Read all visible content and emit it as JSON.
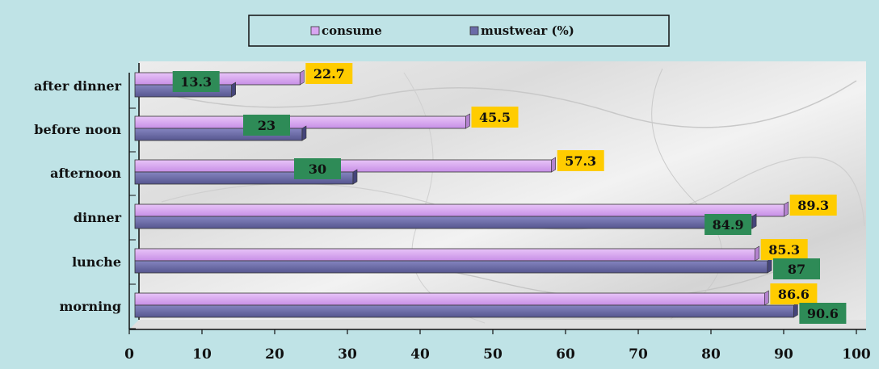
{
  "chart_data": {
    "type": "bar",
    "orientation": "horizontal",
    "title": "",
    "xlabel": "",
    "ylabel": "",
    "categories": [
      "after dinner",
      "before noon",
      "afternoon",
      "dinner",
      "lunche",
      "morning"
    ],
    "series": [
      {
        "name": "consume",
        "values": [
          22.7,
          45.5,
          57.3,
          89.3,
          85.3,
          86.6
        ]
      },
      {
        "name": "mustwear (%)",
        "values": [
          13.3,
          23,
          30,
          84.9,
          87,
          90.6
        ]
      }
    ],
    "xlim": [
      0,
      100
    ],
    "x_ticks": [
      "0",
      "10",
      "20",
      "30",
      "40",
      "50",
      "60",
      "70",
      "80",
      "90",
      "100"
    ],
    "legend_position": "top-center",
    "grid": false,
    "colors": {
      "consume": "#d9a6f2",
      "mustwear (%)": "#6b6ba8",
      "consume_label_bg": "#ffcc00",
      "mustwear_label_bg": "#2e8b57",
      "background": "#bfe3e6"
    }
  }
}
